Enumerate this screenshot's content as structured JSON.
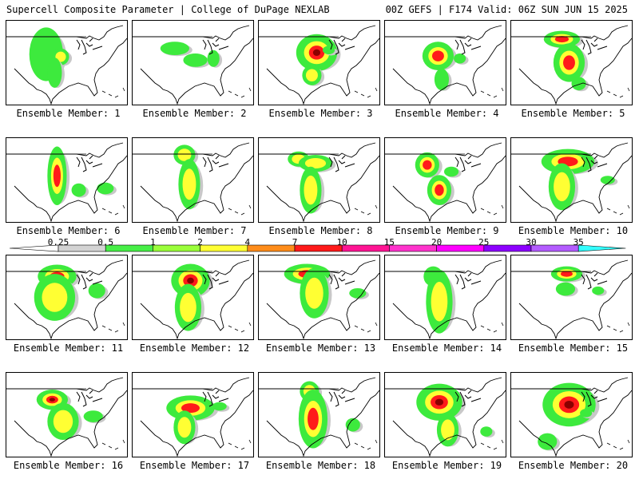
{
  "header": {
    "left_title": "Supercell Composite Parameter | College of DuPage NEXLAB",
    "right_title": "00Z GEFS | F174 Valid: 06Z SUN JUN 15 2025"
  },
  "panel_label_prefix": "Ensemble Member: ",
  "panels": [
    {
      "member": "1",
      "blobs": [
        [
          "-0.7,0.2",
          0.33,
          0.4,
          0.14,
          0.32,
          0
        ],
        [
          "0.1,0.15",
          0.45,
          0.43,
          0.07,
          0.1,
          1
        ],
        [
          "",
          0.4,
          0.62,
          0.06,
          0.18,
          0
        ]
      ]
    },
    {
      "member": "2",
      "blobs": [
        [
          "",
          0.35,
          0.33,
          0.12,
          0.08,
          0
        ],
        [
          "",
          0.52,
          0.47,
          0.1,
          0.08,
          0
        ],
        [
          "",
          0.67,
          0.45,
          0.05,
          0.1,
          0
        ]
      ]
    },
    {
      "member": "3",
      "blobs": [
        [
          "",
          0.48,
          0.38,
          0.17,
          0.22,
          3
        ],
        [
          "",
          0.44,
          0.65,
          0.08,
          0.12,
          1
        ],
        [
          "",
          0.58,
          0.35,
          0.05,
          0.05,
          0
        ]
      ]
    },
    {
      "member": "4",
      "blobs": [
        [
          "",
          0.44,
          0.42,
          0.13,
          0.17,
          2
        ],
        [
          "",
          0.47,
          0.7,
          0.06,
          0.13,
          0
        ],
        [
          "",
          0.62,
          0.45,
          0.05,
          0.06,
          0
        ]
      ]
    },
    {
      "member": "5",
      "blobs": [
        [
          "",
          0.42,
          0.22,
          0.15,
          0.1,
          2
        ],
        [
          "",
          0.48,
          0.5,
          0.13,
          0.23,
          2
        ],
        [
          "",
          0.56,
          0.75,
          0.06,
          0.08,
          0
        ]
      ]
    },
    {
      "member": "6",
      "blobs": [
        [
          "",
          0.42,
          0.45,
          0.08,
          0.35,
          2
        ],
        [
          "",
          0.82,
          0.6,
          0.07,
          0.07,
          0
        ],
        [
          "",
          0.6,
          0.62,
          0.06,
          0.08,
          0
        ]
      ]
    },
    {
      "member": "7",
      "blobs": [
        [
          "",
          0.43,
          0.2,
          0.09,
          0.12,
          1
        ],
        [
          "",
          0.47,
          0.55,
          0.09,
          0.3,
          1
        ]
      ]
    },
    {
      "member": "8",
      "blobs": [
        [
          "",
          0.33,
          0.25,
          0.09,
          0.09,
          1
        ],
        [
          "",
          0.47,
          0.3,
          0.14,
          0.1,
          1
        ],
        [
          "",
          0.43,
          0.62,
          0.09,
          0.28,
          1
        ]
      ]
    },
    {
      "member": "9",
      "blobs": [
        [
          "",
          0.35,
          0.32,
          0.1,
          0.15,
          2
        ],
        [
          "",
          0.45,
          0.62,
          0.1,
          0.18,
          2
        ],
        [
          "",
          0.55,
          0.4,
          0.06,
          0.06,
          0
        ]
      ]
    },
    {
      "member": "10",
      "blobs": [
        [
          "",
          0.47,
          0.28,
          0.22,
          0.15,
          2
        ],
        [
          "",
          0.42,
          0.58,
          0.11,
          0.28,
          1
        ],
        [
          "",
          0.8,
          0.5,
          0.06,
          0.05,
          0
        ]
      ]
    },
    {
      "member": "11",
      "blobs": [
        [
          "",
          0.42,
          0.25,
          0.16,
          0.14,
          3
        ],
        [
          "",
          0.4,
          0.5,
          0.17,
          0.28,
          1
        ],
        [
          "",
          0.75,
          0.42,
          0.07,
          0.09,
          0
        ]
      ]
    },
    {
      "member": "12",
      "blobs": [
        [
          "",
          0.48,
          0.3,
          0.16,
          0.2,
          3
        ],
        [
          "",
          0.46,
          0.62,
          0.11,
          0.28,
          1
        ]
      ]
    },
    {
      "member": "13",
      "blobs": [
        [
          "",
          0.4,
          0.22,
          0.19,
          0.12,
          2
        ],
        [
          "",
          0.46,
          0.45,
          0.12,
          0.3,
          1
        ],
        [
          "",
          0.82,
          0.45,
          0.07,
          0.06,
          0
        ]
      ]
    },
    {
      "member": "14",
      "blobs": [
        [
          "",
          0.4,
          0.25,
          0.08,
          0.12,
          0
        ],
        [
          "",
          0.45,
          0.55,
          0.11,
          0.38,
          1
        ]
      ]
    },
    {
      "member": "15",
      "blobs": [
        [
          "",
          0.46,
          0.22,
          0.13,
          0.09,
          2
        ],
        [
          "",
          0.45,
          0.4,
          0.08,
          0.08,
          0
        ],
        [
          "",
          0.72,
          0.42,
          0.05,
          0.05,
          0
        ]
      ]
    },
    {
      "member": "16",
      "blobs": [
        [
          "",
          0.38,
          0.32,
          0.13,
          0.12,
          3
        ],
        [
          "",
          0.47,
          0.58,
          0.13,
          0.22,
          1
        ],
        [
          "",
          0.72,
          0.52,
          0.08,
          0.07,
          0
        ]
      ]
    },
    {
      "member": "17",
      "blobs": [
        [
          "",
          0.48,
          0.42,
          0.2,
          0.15,
          2
        ],
        [
          "",
          0.43,
          0.65,
          0.09,
          0.2,
          1
        ],
        [
          "",
          0.72,
          0.4,
          0.06,
          0.05,
          0
        ]
      ]
    },
    {
      "member": "18",
      "blobs": [
        [
          "",
          0.42,
          0.22,
          0.08,
          0.12,
          1
        ],
        [
          "",
          0.45,
          0.55,
          0.12,
          0.35,
          2
        ],
        [
          "",
          0.78,
          0.62,
          0.06,
          0.08,
          0
        ]
      ]
    },
    {
      "member": "19",
      "blobs": [
        [
          "",
          0.45,
          0.35,
          0.19,
          0.22,
          3
        ],
        [
          "",
          0.52,
          0.68,
          0.09,
          0.2,
          1
        ],
        [
          "",
          0.84,
          0.7,
          0.05,
          0.06,
          0
        ]
      ]
    },
    {
      "member": "20",
      "blobs": [
        [
          "",
          0.48,
          0.38,
          0.22,
          0.26,
          3
        ],
        [
          "",
          0.3,
          0.82,
          0.08,
          0.1,
          0
        ],
        [
          "",
          0.62,
          0.48,
          0.05,
          0.05,
          0
        ]
      ]
    }
  ],
  "color_scale": {
    "ticks": [
      "0.25",
      "0.5",
      "1",
      "2",
      "4",
      "7",
      "10",
      "15",
      "20",
      "25",
      "30",
      "35"
    ],
    "colors": [
      "#d3d3d3",
      "#47ef47",
      "#9aff3a",
      "#ffff33",
      "#ff8c1a",
      "#ff1a1a",
      "#ff1493",
      "#ff33cc",
      "#ff00ff",
      "#8c00ff",
      "#b35cff",
      "#33ffff"
    ]
  },
  "field_colors": [
    "#c8c8c8",
    "#3dea3d",
    "#ffff33",
    "#ff1a1a",
    "#8b0000"
  ]
}
